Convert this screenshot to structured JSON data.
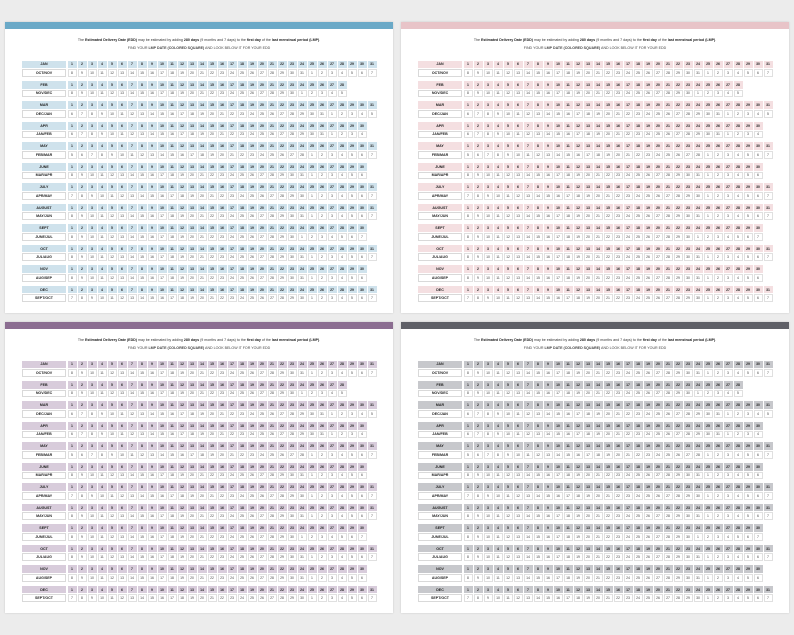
{
  "cols": [
    "1",
    "2",
    "3",
    "4",
    "5",
    "6",
    "7",
    "8",
    "9",
    "10",
    "11",
    "12",
    "13",
    "14",
    "15",
    "16",
    "17",
    "18",
    "19",
    "20",
    "21",
    "22",
    "23",
    "24",
    "25",
    "26",
    "27",
    "28",
    "29",
    "30",
    "31"
  ],
  "sheets": [
    {
      "name": "sheet-blue",
      "color": "#6aa9c7",
      "cell": "#cfe2ec"
    },
    {
      "name": "sheet-pink",
      "color": "#e8c4c8",
      "cell": "#f4dfe1"
    },
    {
      "name": "sheet-purple",
      "color": "#8b6d91",
      "cell": "#d8ccdb"
    },
    {
      "name": "sheet-gray",
      "color": "#5f6067",
      "cell": "#c7c8cc"
    }
  ],
  "intro": {
    "pre": "The ",
    "bold1": "Estimated Delivery Date (EDD)",
    "mid1": " may be estimated by adding ",
    "bold2": "280 days",
    "mid2": " (9 months and 7 days) to the ",
    "bold3": "first day",
    "mid3": " of the ",
    "bold4": "last menstrual period (LMP)",
    "post": "."
  },
  "sub": {
    "pre": "FIND YOUR ",
    "bold": "LMP DATE (COLORED SQUARE)",
    "post": " AND LOOK BELOW IT FOR YOUR EDD"
  },
  "groups": [
    {
      "lmp": "JAN",
      "edd": "OCT/NOV",
      "lmp_days": 31,
      "edd_row": [
        "8",
        "9",
        "10",
        "11",
        "12",
        "13",
        "14",
        "15",
        "16",
        "17",
        "18",
        "19",
        "20",
        "21",
        "22",
        "23",
        "24",
        "25",
        "26",
        "27",
        "28",
        "29",
        "30",
        "31",
        "1",
        "2",
        "3",
        "4",
        "5",
        "6",
        "7"
      ]
    },
    {
      "lmp": "FEB",
      "edd": "NOV/DEC",
      "lmp_days": 28,
      "edd_row": [
        "8",
        "9",
        "10",
        "11",
        "12",
        "13",
        "14",
        "15",
        "16",
        "17",
        "18",
        "19",
        "20",
        "21",
        "22",
        "23",
        "24",
        "25",
        "26",
        "27",
        "28",
        "29",
        "30",
        "1",
        "2",
        "3",
        "4",
        "5"
      ]
    },
    {
      "lmp": "MAR",
      "edd": "DEC/JAN",
      "lmp_days": 31,
      "edd_row": [
        "6",
        "7",
        "8",
        "9",
        "10",
        "11",
        "12",
        "13",
        "14",
        "15",
        "16",
        "17",
        "18",
        "19",
        "20",
        "21",
        "22",
        "23",
        "24",
        "25",
        "26",
        "27",
        "28",
        "29",
        "30",
        "31",
        "1",
        "2",
        "3",
        "4",
        "5"
      ]
    },
    {
      "lmp": "APR",
      "edd": "JAN/FEB",
      "lmp_days": 30,
      "edd_row": [
        "6",
        "7",
        "8",
        "9",
        "10",
        "11",
        "12",
        "13",
        "14",
        "15",
        "16",
        "17",
        "18",
        "19",
        "20",
        "21",
        "22",
        "23",
        "24",
        "25",
        "26",
        "27",
        "28",
        "29",
        "30",
        "31",
        "1",
        "2",
        "3",
        "4"
      ]
    },
    {
      "lmp": "MAY",
      "edd": "FEB/MAR",
      "lmp_days": 31,
      "edd_row": [
        "5",
        "6",
        "7",
        "8",
        "9",
        "10",
        "11",
        "12",
        "13",
        "14",
        "15",
        "16",
        "17",
        "18",
        "19",
        "20",
        "21",
        "22",
        "23",
        "24",
        "25",
        "26",
        "27",
        "28",
        "1",
        "2",
        "3",
        "4",
        "5",
        "6",
        "7"
      ]
    },
    {
      "lmp": "JUNE",
      "edd": "MAR/APR",
      "lmp_days": 30,
      "edd_row": [
        "8",
        "9",
        "10",
        "11",
        "12",
        "13",
        "14",
        "15",
        "16",
        "17",
        "18",
        "19",
        "20",
        "21",
        "22",
        "23",
        "24",
        "25",
        "26",
        "27",
        "28",
        "29",
        "30",
        "31",
        "1",
        "2",
        "3",
        "4",
        "5",
        "6"
      ]
    },
    {
      "lmp": "JULY",
      "edd": "APR/MAY",
      "lmp_days": 31,
      "edd_row": [
        "7",
        "8",
        "9",
        "10",
        "11",
        "12",
        "13",
        "14",
        "15",
        "16",
        "17",
        "18",
        "19",
        "20",
        "21",
        "22",
        "23",
        "24",
        "25",
        "26",
        "27",
        "28",
        "29",
        "30",
        "1",
        "2",
        "3",
        "4",
        "5",
        "6",
        "7"
      ]
    },
    {
      "lmp": "AUGUST",
      "edd": "MAY/JUN",
      "lmp_days": 31,
      "edd_row": [
        "8",
        "9",
        "10",
        "11",
        "12",
        "13",
        "14",
        "15",
        "16",
        "17",
        "18",
        "19",
        "20",
        "21",
        "22",
        "23",
        "24",
        "25",
        "26",
        "27",
        "28",
        "29",
        "30",
        "31",
        "1",
        "2",
        "3",
        "4",
        "5",
        "6",
        "7"
      ]
    },
    {
      "lmp": "SEPT",
      "edd": "JUNE/JUL",
      "lmp_days": 30,
      "edd_row": [
        "8",
        "9",
        "10",
        "11",
        "12",
        "13",
        "14",
        "15",
        "16",
        "17",
        "18",
        "19",
        "20",
        "21",
        "22",
        "23",
        "24",
        "25",
        "26",
        "27",
        "28",
        "29",
        "30",
        "1",
        "2",
        "3",
        "4",
        "5",
        "6",
        "7"
      ]
    },
    {
      "lmp": "OCT",
      "edd": "JUL/AUG",
      "lmp_days": 31,
      "edd_row": [
        "8",
        "9",
        "10",
        "11",
        "12",
        "13",
        "14",
        "15",
        "16",
        "17",
        "18",
        "19",
        "20",
        "21",
        "22",
        "23",
        "24",
        "25",
        "26",
        "27",
        "28",
        "29",
        "30",
        "31",
        "1",
        "2",
        "3",
        "4",
        "5",
        "6",
        "7"
      ]
    },
    {
      "lmp": "NOV",
      "edd": "AUG/SEP",
      "lmp_days": 30,
      "edd_row": [
        "8",
        "9",
        "10",
        "11",
        "12",
        "13",
        "14",
        "15",
        "16",
        "17",
        "18",
        "19",
        "20",
        "21",
        "22",
        "23",
        "24",
        "25",
        "26",
        "27",
        "28",
        "29",
        "30",
        "31",
        "1",
        "2",
        "3",
        "4",
        "5",
        "6"
      ]
    },
    {
      "lmp": "DEC",
      "edd": "SEPT/OCT",
      "lmp_days": 31,
      "edd_row": [
        "7",
        "8",
        "9",
        "10",
        "11",
        "12",
        "13",
        "14",
        "15",
        "16",
        "17",
        "18",
        "19",
        "20",
        "21",
        "22",
        "23",
        "24",
        "25",
        "26",
        "27",
        "28",
        "29",
        "30",
        "1",
        "2",
        "3",
        "4",
        "5",
        "6",
        "7"
      ]
    }
  ]
}
